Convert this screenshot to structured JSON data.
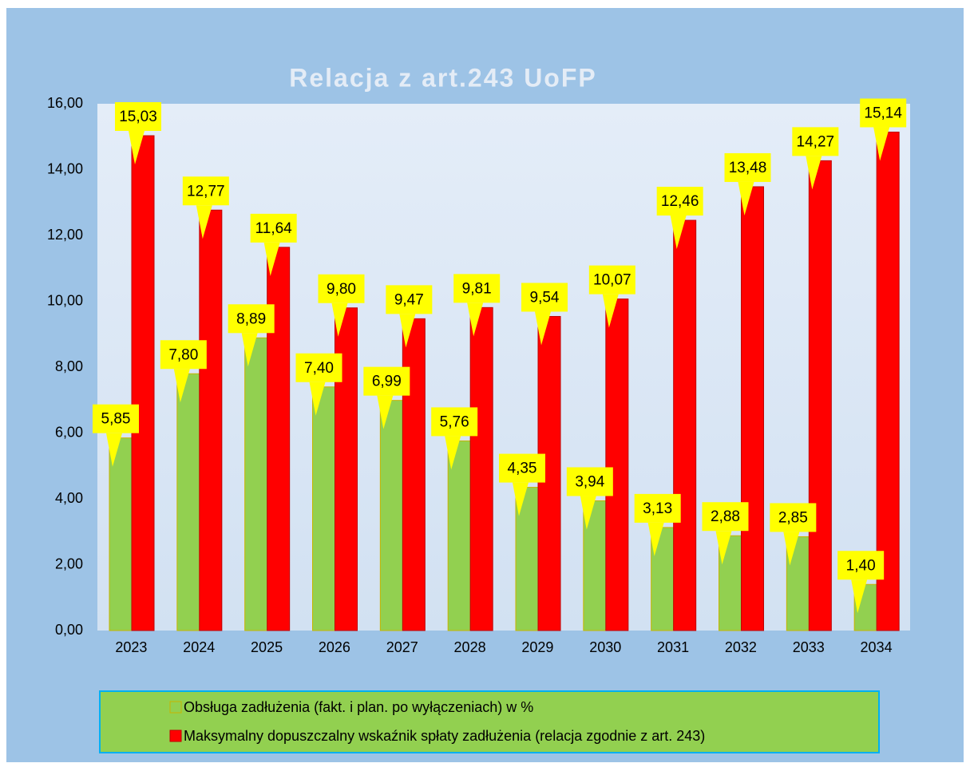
{
  "chart_data": {
    "type": "bar",
    "title": "Relacja z art.243 UoFP",
    "categories": [
      "2023",
      "2024",
      "2025",
      "2026",
      "2027",
      "2028",
      "2029",
      "2030",
      "2031",
      "2032",
      "2033",
      "2034"
    ],
    "series": [
      {
        "name": "Obsługa zadłużenia (fakt. i plan. po wyłączeniach) w %",
        "color": "#92d050",
        "values": [
          5.85,
          7.8,
          8.89,
          7.4,
          6.99,
          5.76,
          4.35,
          3.94,
          3.13,
          2.88,
          2.85,
          1.4
        ],
        "value_labels": [
          "5,85",
          "7,80",
          "8,89",
          "7,40",
          "6,99",
          "5,76",
          "4,35",
          "3,94",
          "3,13",
          "2,88",
          "2,85",
          "1,40"
        ]
      },
      {
        "name": "Maksymalny dopuszczalny wskaźnik spłaty  zadłużenia (relacja zgodnie z art. 243)",
        "color": "#ff0000",
        "values": [
          15.03,
          12.77,
          11.64,
          9.8,
          9.47,
          9.81,
          9.54,
          10.07,
          12.46,
          13.48,
          14.27,
          15.14
        ],
        "value_labels": [
          "15,03",
          "12,77",
          "11,64",
          "9,80",
          "9,47",
          "9,81",
          "9,54",
          "10,07",
          "12,46",
          "13,48",
          "14,27",
          "15,14"
        ]
      }
    ],
    "ylim": [
      0,
      16
    ],
    "yticks": [
      {
        "value": 0,
        "label": "0,00"
      },
      {
        "value": 2,
        "label": "2,00"
      },
      {
        "value": 4,
        "label": "4,00"
      },
      {
        "value": 6,
        "label": "6,00"
      },
      {
        "value": 8,
        "label": "8,00"
      },
      {
        "value": 10,
        "label": "10,00"
      },
      {
        "value": 12,
        "label": "12,00"
      },
      {
        "value": 14,
        "label": "14,00"
      },
      {
        "value": 16,
        "label": "16,00"
      }
    ],
    "grid": false
  }
}
